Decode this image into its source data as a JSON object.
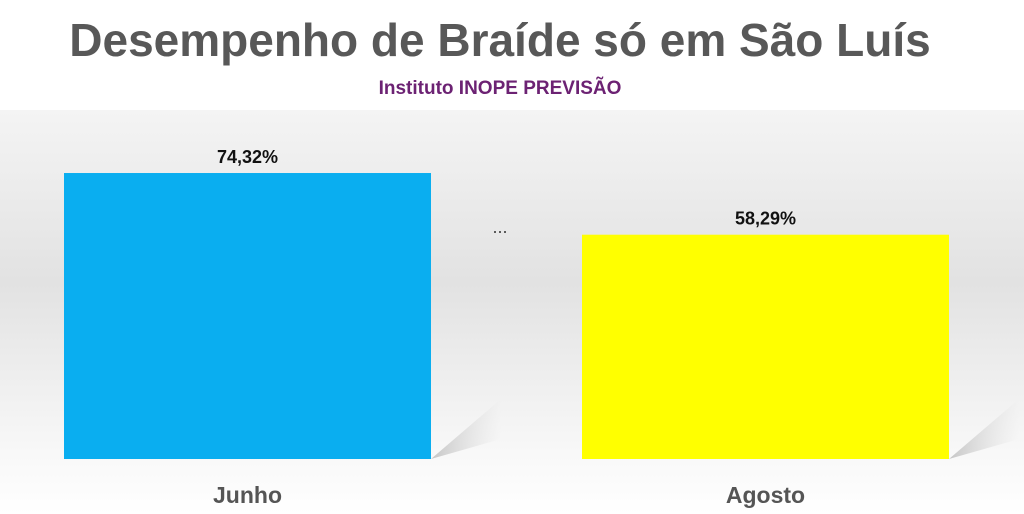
{
  "chart_data": {
    "type": "bar",
    "title": "Desempenho de Braíde só em São Luís",
    "subtitle": "Instituto INOPE PREVISÃO",
    "annotation": "...",
    "categories": [
      "Junho",
      "Agosto"
    ],
    "values": [
      74.32,
      58.29
    ],
    "value_labels": [
      "74,32%",
      "58,29%"
    ],
    "colors": [
      "#0aaef0",
      "#ffff00"
    ],
    "ylim": [
      0,
      100
    ]
  }
}
